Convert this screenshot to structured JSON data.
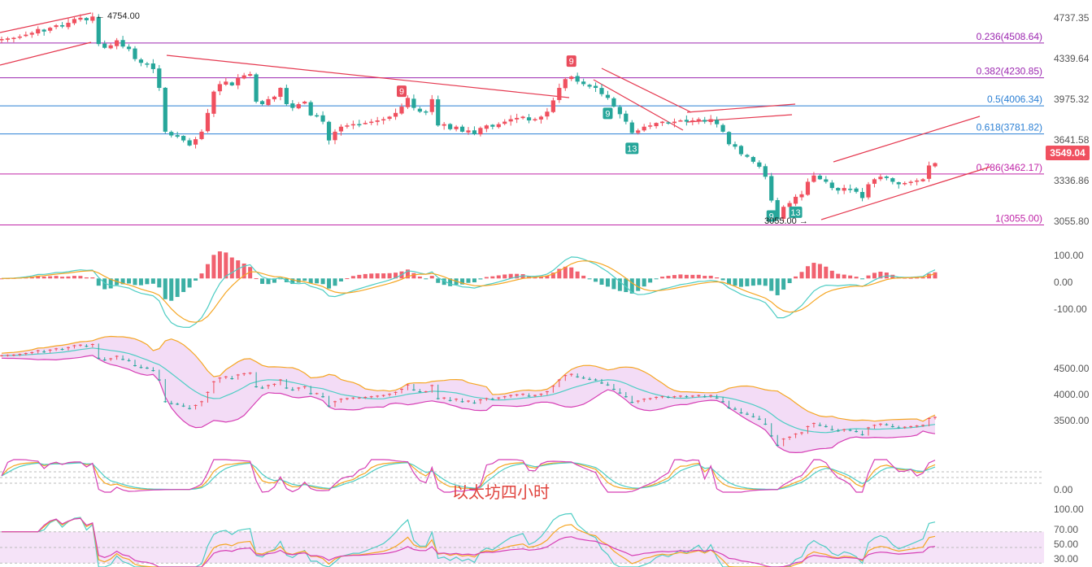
{
  "chart_data": [
    {
      "type": "candlestick",
      "panel": "price",
      "y_ticks": [
        "4737.35",
        "4339.64",
        "3975.32",
        "3641.58",
        "3336.86",
        "3055.80"
      ],
      "ylim": [
        3000,
        4800
      ],
      "last_price_label": "3549.04",
      "high_annotation": "4754.00",
      "low_annotation": "3055.00",
      "fib_levels": [
        {
          "label": "0.236(4508.64)",
          "value": 4508.64,
          "color": "#9c27b0"
        },
        {
          "label": "0.382(4230.85)",
          "value": 4230.85,
          "color": "#9c27b0"
        },
        {
          "label": "0.5(4006.34)",
          "value": 4006.34,
          "color": "#2a7fd4"
        },
        {
          "label": "0.618(3781.82)",
          "value": 3781.82,
          "color": "#2a7fd4"
        },
        {
          "label": "0.786(3462.17)",
          "value": 3462.17,
          "color": "#c026a8"
        },
        {
          "label": "1(3055.00)",
          "value": 3055.0,
          "color": "#c026a8"
        }
      ],
      "td_markers": [
        {
          "text": "9",
          "i": 66,
          "color": "#e94c5c",
          "pos": "above"
        },
        {
          "text": "9",
          "i": 94,
          "color": "#e94c5c",
          "pos": "above"
        },
        {
          "text": "9",
          "i": 100,
          "color": "#26a69a",
          "pos": "below"
        },
        {
          "text": "13",
          "i": 104,
          "color": "#26a69a",
          "pos": "below"
        },
        {
          "text": "9",
          "i": 127,
          "color": "#26a69a",
          "pos": "below"
        },
        {
          "text": "13",
          "i": 131,
          "color": "#26a69a",
          "pos": "below"
        }
      ],
      "closes": [
        4540,
        4545,
        4550,
        4560,
        4575,
        4590,
        4620,
        4600,
        4630,
        4650,
        4640,
        4670,
        4700,
        4710,
        4690,
        4720,
        4500,
        4470,
        4490,
        4530,
        4480,
        4460,
        4380,
        4350,
        4340,
        4300,
        4150,
        3800,
        3770,
        3760,
        3730,
        3690,
        3740,
        3800,
        3950,
        4120,
        4180,
        4200,
        4170,
        4230,
        4250,
        4260,
        4040,
        4020,
        4060,
        4080,
        4150,
        4020,
        3990,
        4020,
        4040,
        3930,
        3930,
        3880,
        3730,
        3800,
        3840,
        3850,
        3860,
        3860,
        3870,
        3880,
        3890,
        3900,
        3920,
        3950,
        4000,
        4070,
        3990,
        3960,
        3960,
        4060,
        3850,
        3860,
        3820,
        3840,
        3800,
        3810,
        3780,
        3830,
        3850,
        3840,
        3860,
        3880,
        3900,
        3910,
        3920,
        3890,
        3900,
        3920,
        3960,
        4050,
        4150,
        4220,
        4240,
        4200,
        4180,
        4160,
        4150,
        4100,
        4070,
        4000,
        3940,
        3880,
        3790,
        3810,
        3840,
        3850,
        3870,
        3880,
        3870,
        3880,
        3890,
        3880,
        3890,
        3900,
        3880,
        3900,
        3860,
        3800,
        3700,
        3680,
        3620,
        3600,
        3560,
        3520,
        3440,
        3250,
        3100,
        3200,
        3230,
        3280,
        3300,
        3400,
        3450,
        3420,
        3400,
        3350,
        3330,
        3350,
        3340,
        3320,
        3270,
        3380,
        3420,
        3440,
        3430,
        3400,
        3380,
        3390,
        3400,
        3410,
        3420,
        3530,
        3549
      ]
    },
    {
      "type": "macd",
      "panel": "macd",
      "y_ticks": [
        "100.00",
        "0.00",
        "-100.00"
      ],
      "ylim": [
        -160,
        120
      ]
    },
    {
      "type": "bollinger",
      "panel": "boll",
      "y_ticks": [
        "4500.00",
        "4000.00",
        "3500.00"
      ],
      "ylim": [
        3000,
        4700
      ]
    },
    {
      "type": "kdj",
      "panel": "kdj",
      "y_ticks": [
        "0.00"
      ],
      "ylim": [
        -10,
        110
      ]
    },
    {
      "type": "rsi",
      "panel": "rsi",
      "y_ticks": [
        "100.00",
        "70.00",
        "50.00",
        "30.00"
      ],
      "ylim": [
        25,
        105
      ]
    }
  ],
  "watermark": "以太坊四小时",
  "colors": {
    "up": "#f0505f",
    "down": "#26a69a",
    "trend": "#e53950",
    "ma_orange": "#f5a623",
    "ma_teal": "#4ecdc4",
    "boll_fill": "#f3dcf6"
  }
}
